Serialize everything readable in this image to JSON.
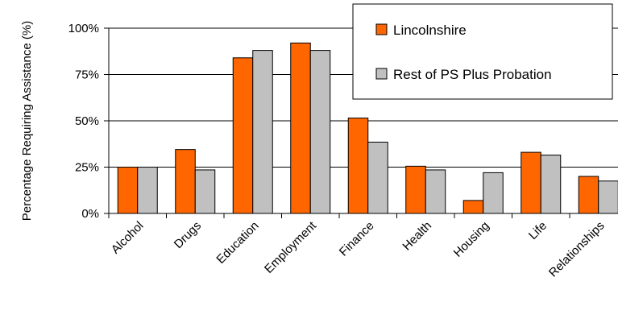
{
  "chart_data": {
    "type": "bar",
    "categories": [
      "Alcohol",
      "Drugs",
      "Education",
      "Employment",
      "Finance",
      "Health",
      "Housing",
      "Life",
      "Relationships"
    ],
    "series": [
      {
        "name": "Lincolnshire",
        "values": [
          25,
          34.5,
          84,
          92,
          51.5,
          25.5,
          7,
          33,
          20
        ],
        "color": "#ff6600"
      },
      {
        "name": "Rest of PS Plus Probation",
        "values": [
          25,
          23.5,
          88,
          88,
          38.5,
          23.5,
          22,
          31.5,
          17.5
        ],
        "color": "#c0c0c0"
      }
    ],
    "ylabel": "Percentage Requiring Assistance (%)",
    "xlabel": "",
    "ylim": [
      0,
      100
    ],
    "yticks": [
      "0%",
      "25%",
      "50%",
      "75%",
      "100%"
    ],
    "grid": true,
    "legend_position": "top-right"
  }
}
